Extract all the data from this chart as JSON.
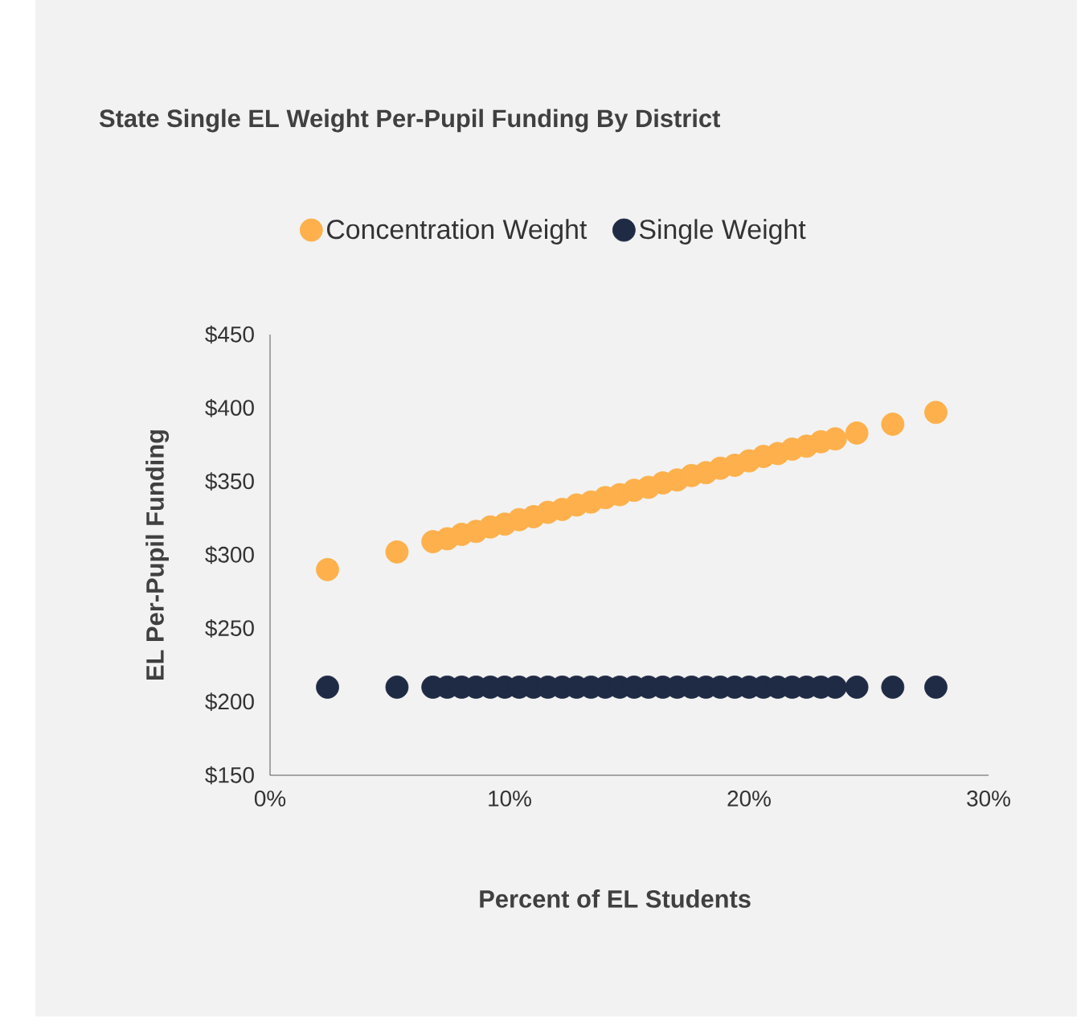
{
  "chart_data": {
    "type": "scatter",
    "title": "State Single EL Weight Per-Pupil Funding By District",
    "xlabel": "Percent of EL Students",
    "ylabel": "EL Per-Pupil Funding",
    "x": [
      2.4,
      5.3,
      6.8,
      7.4,
      8.0,
      8.6,
      9.2,
      9.8,
      10.4,
      11.0,
      11.6,
      12.2,
      12.8,
      13.4,
      14.0,
      14.6,
      15.2,
      15.8,
      16.4,
      17.0,
      17.6,
      18.2,
      18.8,
      19.4,
      20.0,
      20.6,
      21.2,
      21.8,
      22.4,
      23.0,
      23.6,
      24.5,
      26.0,
      27.8
    ],
    "series": [
      {
        "name": "Concentration Weight",
        "color": "#fdb04b",
        "values": [
          290,
          302,
          309,
          311,
          314,
          316,
          319,
          321,
          324,
          326,
          329,
          331,
          334,
          336,
          339,
          341,
          344,
          346,
          349,
          351,
          354,
          356,
          359,
          361,
          364,
          367,
          369,
          372,
          374,
          377,
          379,
          383,
          389,
          397
        ]
      },
      {
        "name": "Single Weight",
        "color": "#1f2a44",
        "values": [
          210,
          210,
          210,
          210,
          210,
          210,
          210,
          210,
          210,
          210,
          210,
          210,
          210,
          210,
          210,
          210,
          210,
          210,
          210,
          210,
          210,
          210,
          210,
          210,
          210,
          210,
          210,
          210,
          210,
          210,
          210,
          210,
          210,
          210
        ]
      }
    ],
    "xlim": [
      0,
      30
    ],
    "ylim": [
      150,
      450
    ],
    "xticks": [
      {
        "value": 0,
        "label": "0%"
      },
      {
        "value": 10,
        "label": "10%"
      },
      {
        "value": 20,
        "label": "20%"
      },
      {
        "value": 30,
        "label": "30%"
      }
    ],
    "yticks": [
      {
        "value": 150,
        "label": "$150"
      },
      {
        "value": 200,
        "label": "$200"
      },
      {
        "value": 250,
        "label": "$250"
      },
      {
        "value": 300,
        "label": "$300"
      },
      {
        "value": 350,
        "label": "$350"
      },
      {
        "value": 400,
        "label": "$400"
      },
      {
        "value": 450,
        "label": "$450"
      }
    ],
    "legend": "top",
    "marker": "circle"
  }
}
